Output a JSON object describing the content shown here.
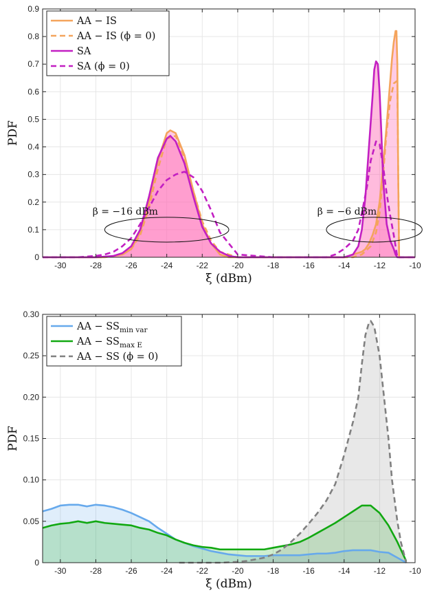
{
  "chart_data": [
    {
      "type": "area",
      "xlabel": "ξ (dBm)",
      "ylabel": "PDF",
      "xlim": [
        -31,
        -10
      ],
      "ylim": [
        0,
        0.9
      ],
      "xticks": [
        -30,
        -28,
        -26,
        -24,
        -22,
        -20,
        -18,
        -16,
        -14,
        -12,
        -10
      ],
      "yticks": [
        0,
        0.1,
        0.2,
        0.3,
        0.4,
        0.5,
        0.6,
        0.7,
        0.8,
        0.9
      ],
      "grid": true,
      "legend_position": "top-left",
      "series": [
        {
          "name": "AA − IS",
          "color": "#f4a45c",
          "dash": "solid",
          "x": [
            -31,
            -27.5,
            -26.5,
            -26,
            -25.5,
            -25,
            -24.5,
            -24,
            -23.8,
            -23.5,
            -23,
            -22.5,
            -22,
            -21.5,
            -21,
            -20.5,
            -19,
            -15,
            -14,
            -13.5,
            -13,
            -12.8,
            -12.6,
            -12.4,
            -12.2,
            -12,
            -11.8,
            -11.6,
            -11.4,
            -11.3,
            -11.2,
            -11.1,
            -11.05,
            -11,
            -10.95,
            -10.9,
            -10.5,
            -10
          ],
          "y": [
            0,
            0,
            0.01,
            0.03,
            0.09,
            0.2,
            0.35,
            0.45,
            0.46,
            0.45,
            0.37,
            0.24,
            0.12,
            0.05,
            0.01,
            0,
            0,
            0,
            0,
            0.01,
            0.02,
            0.03,
            0.05,
            0.08,
            0.12,
            0.2,
            0.33,
            0.48,
            0.64,
            0.72,
            0.78,
            0.82,
            0.82,
            0.7,
            0.3,
            0,
            0,
            0
          ]
        },
        {
          "name": "AA − IS (ϕ = 0)",
          "color": "#f4a45c",
          "dash": "dashed",
          "x": [
            -31,
            -27.5,
            -26.5,
            -26,
            -25.5,
            -25,
            -24.5,
            -24,
            -23.5,
            -23,
            -22.5,
            -22,
            -21.5,
            -21,
            -20,
            -15,
            -14,
            -13.5,
            -13,
            -12.5,
            -12.2,
            -12,
            -11.8,
            -11.6,
            -11.4,
            -11.2,
            -11,
            -10.95,
            -10.9,
            -10
          ],
          "y": [
            0,
            0,
            0.01,
            0.03,
            0.08,
            0.18,
            0.32,
            0.43,
            0.44,
            0.36,
            0.24,
            0.13,
            0.06,
            0.02,
            0,
            0,
            0,
            0,
            0.01,
            0.04,
            0.09,
            0.16,
            0.3,
            0.46,
            0.57,
            0.63,
            0.64,
            0.3,
            0,
            0
          ]
        },
        {
          "name": "SA",
          "color": "#c21fc2",
          "dash": "solid",
          "x": [
            -31,
            -28,
            -27,
            -26.5,
            -26,
            -25.5,
            -25,
            -24.5,
            -24,
            -23.8,
            -23.5,
            -23,
            -22.5,
            -22,
            -21.5,
            -21,
            -20.5,
            -20,
            -18,
            -15,
            -14,
            -13.5,
            -13.2,
            -13,
            -12.8,
            -12.6,
            -12.4,
            -12.3,
            -12.2,
            -12.1,
            -12,
            -11.9,
            -11.8,
            -11.6,
            -11.4,
            -11.2,
            -11.1,
            -11,
            -10
          ],
          "y": [
            0,
            0,
            0.005,
            0.015,
            0.04,
            0.1,
            0.22,
            0.36,
            0.43,
            0.44,
            0.42,
            0.34,
            0.22,
            0.11,
            0.05,
            0.02,
            0.005,
            0,
            0,
            0,
            0,
            0.01,
            0.04,
            0.1,
            0.22,
            0.4,
            0.58,
            0.68,
            0.71,
            0.7,
            0.6,
            0.45,
            0.28,
            0.12,
            0.06,
            0.03,
            0.01,
            0,
            0
          ]
        },
        {
          "name": "SA (ϕ = 0)",
          "color": "#c21fc2",
          "dash": "dashed",
          "x": [
            -31,
            -29,
            -28,
            -27.5,
            -27,
            -26.5,
            -26,
            -25.5,
            -25,
            -24.5,
            -24,
            -23.5,
            -23,
            -22.5,
            -22,
            -21.5,
            -21,
            -20,
            -18,
            -16,
            -15,
            -14.5,
            -14,
            -13.5,
            -13.2,
            -13,
            -12.7,
            -12.5,
            -12.2,
            -12,
            -11.8,
            -11.6,
            -11.4,
            -11.2,
            -11.1,
            -11,
            -10
          ],
          "y": [
            0,
            0,
            0.005,
            0.01,
            0.02,
            0.04,
            0.07,
            0.12,
            0.18,
            0.24,
            0.28,
            0.3,
            0.31,
            0.29,
            0.24,
            0.17,
            0.09,
            0.01,
            0,
            0,
            0,
            0.01,
            0.03,
            0.06,
            0.1,
            0.16,
            0.26,
            0.35,
            0.42,
            0.41,
            0.33,
            0.23,
            0.15,
            0.08,
            0.04,
            0,
            0
          ]
        }
      ],
      "annotations": [
        {
          "text": "β = −16 dBm",
          "ellipse_center": [
            -24,
            0.1
          ],
          "ellipse_radius": [
            3.5,
            0.045
          ]
        },
        {
          "text": "β = −6 dBm",
          "ellipse_center": [
            -12.3,
            0.1
          ],
          "ellipse_radius": [
            2.7,
            0.045
          ]
        }
      ]
    },
    {
      "type": "area",
      "xlabel": "ξ (dBm)",
      "ylabel": "PDF",
      "xlim": [
        -31,
        -10
      ],
      "ylim": [
        0,
        0.3
      ],
      "xticks": [
        -30,
        -28,
        -26,
        -24,
        -22,
        -20,
        -18,
        -16,
        -14,
        -12,
        -10
      ],
      "yticks": [
        0,
        0.05,
        0.1,
        0.15,
        0.2,
        0.25,
        0.3
      ],
      "grid": true,
      "legend_position": "top-left",
      "series": [
        {
          "name": "AA − SS",
          "name_subscript": "min var",
          "color": "#66a9ec",
          "dash": "solid",
          "x": [
            -31,
            -30.5,
            -30,
            -29.5,
            -29,
            -28.5,
            -28,
            -27.5,
            -27,
            -26.5,
            -26,
            -25.5,
            -25,
            -24.5,
            -24,
            -23.5,
            -23,
            -22.5,
            -22,
            -21.5,
            -21,
            -20.5,
            -20,
            -19.5,
            -19,
            -18.5,
            -18,
            -17.5,
            -17,
            -16.5,
            -16,
            -15.5,
            -15,
            -14.5,
            -14,
            -13.5,
            -13,
            -12.5,
            -12,
            -11.5,
            -11,
            -10.5
          ],
          "y": [
            0.062,
            0.065,
            0.069,
            0.07,
            0.07,
            0.068,
            0.07,
            0.069,
            0.067,
            0.064,
            0.06,
            0.055,
            0.05,
            0.042,
            0.035,
            0.028,
            0.024,
            0.02,
            0.017,
            0.014,
            0.012,
            0.01,
            0.009,
            0.008,
            0.008,
            0.008,
            0.009,
            0.009,
            0.009,
            0.009,
            0.01,
            0.011,
            0.011,
            0.012,
            0.014,
            0.015,
            0.015,
            0.015,
            0.013,
            0.012,
            0.006,
            0
          ]
        },
        {
          "name": "AA − SS",
          "name_subscript": "max E",
          "color": "#11a811",
          "dash": "solid",
          "x": [
            -31,
            -30.5,
            -30,
            -29.5,
            -29,
            -28.5,
            -28,
            -27.5,
            -27,
            -26.5,
            -26,
            -25.5,
            -25,
            -24.5,
            -24,
            -23.5,
            -23,
            -22.5,
            -22,
            -21.5,
            -21,
            -20.5,
            -20,
            -19.5,
            -19,
            -18.5,
            -18,
            -17.5,
            -17,
            -16.5,
            -16,
            -15.5,
            -15,
            -14.5,
            -14,
            -13.5,
            -13,
            -12.5,
            -12,
            -11.5,
            -11,
            -10.5
          ],
          "y": [
            0.042,
            0.045,
            0.047,
            0.048,
            0.05,
            0.048,
            0.05,
            0.048,
            0.047,
            0.046,
            0.045,
            0.042,
            0.04,
            0.036,
            0.033,
            0.028,
            0.024,
            0.021,
            0.019,
            0.018,
            0.016,
            0.016,
            0.016,
            0.016,
            0.016,
            0.016,
            0.018,
            0.02,
            0.022,
            0.025,
            0.03,
            0.036,
            0.042,
            0.048,
            0.055,
            0.062,
            0.069,
            0.069,
            0.06,
            0.045,
            0.025,
            0.002
          ]
        },
        {
          "name": "AA − SS (ϕ = 0)",
          "color": "#808080",
          "dash": "dashed",
          "x": [
            -23.3,
            -22,
            -21,
            -20,
            -19.5,
            -19,
            -18.5,
            -18,
            -17.5,
            -17,
            -16.5,
            -16,
            -15.5,
            -15,
            -14.5,
            -14,
            -13.5,
            -13.2,
            -13,
            -12.8,
            -12.6,
            -12.5,
            -12.3,
            -12,
            -11.8,
            -11.5,
            -11.3,
            -11,
            -10.8,
            -10.5
          ],
          "y": [
            0,
            0,
            0,
            0.001,
            0.002,
            0.004,
            0.006,
            0.01,
            0.016,
            0.025,
            0.035,
            0.047,
            0.06,
            0.075,
            0.095,
            0.13,
            0.17,
            0.2,
            0.24,
            0.275,
            0.29,
            0.292,
            0.285,
            0.25,
            0.21,
            0.15,
            0.1,
            0.05,
            0.025,
            0
          ]
        }
      ]
    }
  ]
}
